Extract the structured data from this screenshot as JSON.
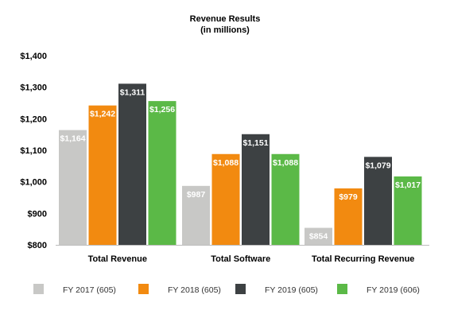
{
  "chart_data": {
    "type": "bar",
    "title": "Revenue Results",
    "subtitle": "(in millions)",
    "categories": [
      "Total Revenue",
      "Total Software",
      "Total Recurring Revenue"
    ],
    "series": [
      {
        "name": "FY 2017 (605)",
        "color": "#c8c8c6",
        "values": [
          1164,
          987,
          854
        ],
        "labels": [
          "$1,164",
          "$987",
          "$854"
        ]
      },
      {
        "name": "FY 2018 (605)",
        "color": "#f28a10",
        "values": [
          1242,
          1088,
          979
        ],
        "labels": [
          "$1,242",
          "$1,088",
          "$979"
        ]
      },
      {
        "name": "FY 2019 (605)",
        "color": "#3d4143",
        "values": [
          1311,
          1151,
          1079
        ],
        "labels": [
          "$1,311",
          "$1,151",
          "$1,079"
        ]
      },
      {
        "name": "FY 2019 (606)",
        "color": "#5bb947",
        "values": [
          1256,
          1088,
          1017
        ],
        "labels": [
          "$1,256",
          "$1,088",
          "$1,017"
        ]
      }
    ],
    "ylim": [
      800,
      1400
    ],
    "yticks": [
      800,
      900,
      1000,
      1100,
      1200,
      1300,
      1400
    ],
    "ytick_labels": [
      "$800",
      "$900",
      "$1,000",
      "$1,100",
      "$1,200",
      "$1,300",
      "$1,400"
    ],
    "xlabel": "",
    "ylabel": "",
    "grid": false,
    "legend_position": "bottom"
  }
}
